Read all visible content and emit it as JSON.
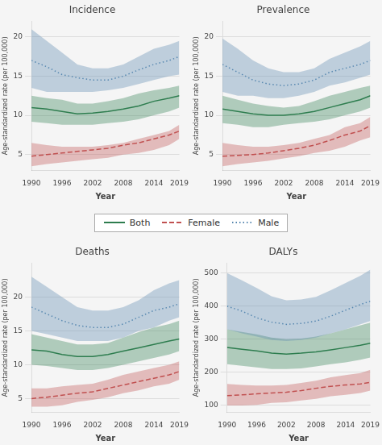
{
  "chart_data": [
    {
      "type": "line",
      "title": "Incidence",
      "xlabel": "Year",
      "ylabel": "Age-standardized rate (per 100,000)",
      "x": [
        1990,
        1993,
        1996,
        1999,
        2002,
        2005,
        2008,
        2011,
        2014,
        2017,
        2019
      ],
      "xlim": [
        1990,
        2019
      ],
      "xticks": [
        1990,
        1996,
        2002,
        2008,
        2014,
        2019
      ],
      "ylim": [
        3,
        22
      ],
      "yticks": [
        5,
        10,
        15,
        20
      ],
      "grid": "y",
      "legend": "bottom",
      "series": [
        {
          "name": "Both",
          "color": "#2e7d4f",
          "line_style": "solid",
          "values": [
            11.0,
            10.8,
            10.5,
            10.2,
            10.3,
            10.5,
            10.8,
            11.2,
            11.8,
            12.2,
            12.5
          ],
          "upper": [
            12.5,
            12.2,
            12.0,
            11.5,
            11.5,
            11.8,
            12.2,
            12.8,
            13.2,
            13.5,
            13.8
          ],
          "lower": [
            9.2,
            9.0,
            8.8,
            8.8,
            8.8,
            9.0,
            9.2,
            9.5,
            10.0,
            10.5,
            11.0
          ]
        },
        {
          "name": "Female",
          "color": "#c05050",
          "line_style": "dashed",
          "values": [
            4.8,
            5.0,
            5.2,
            5.4,
            5.6,
            5.8,
            6.2,
            6.5,
            7.0,
            7.5,
            8.0
          ],
          "upper": [
            6.5,
            6.2,
            6.0,
            6.0,
            6.0,
            6.2,
            6.5,
            7.0,
            7.5,
            8.0,
            8.8
          ],
          "lower": [
            3.5,
            3.8,
            4.0,
            4.2,
            4.4,
            4.6,
            5.0,
            5.2,
            5.6,
            6.2,
            7.0
          ]
        },
        {
          "name": "Male",
          "color": "#5888b0",
          "line_style": "dotted",
          "values": [
            17.0,
            16.2,
            15.2,
            14.8,
            14.5,
            14.5,
            15.0,
            15.8,
            16.5,
            17.0,
            17.5
          ],
          "upper": [
            21.0,
            19.5,
            18.0,
            16.5,
            16.0,
            16.0,
            16.5,
            17.5,
            18.5,
            19.0,
            19.5
          ],
          "lower": [
            13.5,
            13.0,
            13.0,
            13.0,
            13.0,
            13.2,
            13.5,
            14.0,
            14.5,
            15.0,
            15.2
          ]
        }
      ]
    },
    {
      "type": "line",
      "title": "Prevalence",
      "xlabel": "Year",
      "ylabel": "Age-standardized rate (per 100,000)",
      "x": [
        1990,
        1993,
        1996,
        1999,
        2002,
        2005,
        2008,
        2011,
        2014,
        2017,
        2019
      ],
      "xlim": [
        1990,
        2019
      ],
      "xticks": [
        1990,
        1996,
        2002,
        2008,
        2014,
        2019
      ],
      "ylim": [
        3,
        22
      ],
      "yticks": [
        5,
        10,
        15,
        20
      ],
      "grid": "y",
      "series": [
        {
          "name": "Both",
          "color": "#2e7d4f",
          "line_style": "solid",
          "values": [
            10.8,
            10.5,
            10.2,
            10.0,
            10.0,
            10.2,
            10.5,
            11.0,
            11.5,
            12.0,
            12.5
          ],
          "upper": [
            12.5,
            12.0,
            11.5,
            11.2,
            11.0,
            11.2,
            11.8,
            12.5,
            13.0,
            13.5,
            13.8
          ],
          "lower": [
            9.0,
            8.8,
            8.5,
            8.5,
            8.8,
            9.0,
            9.2,
            9.5,
            10.0,
            10.5,
            11.0
          ]
        },
        {
          "name": "Female",
          "color": "#c05050",
          "line_style": "dashed",
          "values": [
            4.8,
            4.9,
            5.0,
            5.2,
            5.5,
            5.8,
            6.2,
            6.8,
            7.5,
            8.0,
            8.7
          ],
          "upper": [
            6.5,
            6.2,
            6.0,
            6.0,
            6.2,
            6.5,
            7.0,
            7.5,
            8.5,
            9.0,
            9.8
          ],
          "lower": [
            3.5,
            3.8,
            4.0,
            4.2,
            4.5,
            4.8,
            5.2,
            5.5,
            6.0,
            6.8,
            7.2
          ]
        },
        {
          "name": "Male",
          "color": "#5888b0",
          "line_style": "dotted",
          "values": [
            16.5,
            15.5,
            14.5,
            14.0,
            13.8,
            14.0,
            14.5,
            15.5,
            16.0,
            16.5,
            17.0
          ],
          "upper": [
            19.8,
            18.5,
            17.0,
            16.0,
            15.5,
            15.5,
            16.0,
            17.2,
            18.0,
            18.8,
            19.5
          ],
          "lower": [
            13.0,
            12.5,
            12.5,
            12.2,
            12.2,
            12.5,
            13.0,
            13.8,
            14.2,
            14.8,
            15.2
          ]
        }
      ]
    },
    {
      "type": "line",
      "title": "Deaths",
      "xlabel": "Year",
      "ylabel": "Age-standardized rate (per 100,000)",
      "x": [
        1990,
        1993,
        1996,
        1999,
        2002,
        2005,
        2008,
        2011,
        2014,
        2017,
        2019
      ],
      "xlim": [
        1990,
        2019
      ],
      "xticks": [
        1990,
        1996,
        2002,
        2008,
        2014,
        2019
      ],
      "ylim": [
        3,
        25
      ],
      "yticks": [
        5,
        10,
        15,
        20
      ],
      "grid": "y",
      "series": [
        {
          "name": "Both",
          "color": "#2e7d4f",
          "line_style": "solid",
          "values": [
            12.2,
            12.0,
            11.5,
            11.2,
            11.2,
            11.5,
            12.0,
            12.5,
            13.0,
            13.5,
            13.8
          ],
          "upper": [
            14.5,
            14.0,
            13.5,
            13.0,
            13.0,
            13.2,
            14.0,
            14.8,
            15.5,
            16.0,
            16.5
          ],
          "lower": [
            10.0,
            9.8,
            9.5,
            9.2,
            9.2,
            9.5,
            10.0,
            10.5,
            11.0,
            11.5,
            12.0
          ]
        },
        {
          "name": "Female",
          "color": "#c05050",
          "line_style": "dashed",
          "values": [
            5.0,
            5.2,
            5.5,
            5.8,
            6.0,
            6.5,
            7.0,
            7.5,
            8.0,
            8.5,
            9.0
          ],
          "upper": [
            6.5,
            6.5,
            6.8,
            7.0,
            7.2,
            7.8,
            8.5,
            9.0,
            9.5,
            10.0,
            10.5
          ],
          "lower": [
            3.8,
            3.8,
            4.0,
            4.5,
            4.8,
            5.2,
            5.8,
            6.2,
            6.8,
            7.2,
            7.8
          ]
        },
        {
          "name": "Male",
          "color": "#5888b0",
          "line_style": "dotted",
          "values": [
            18.5,
            17.5,
            16.5,
            15.8,
            15.5,
            15.5,
            16.0,
            17.0,
            18.0,
            18.5,
            19.0
          ],
          "upper": [
            23.0,
            21.5,
            20.0,
            18.5,
            18.0,
            18.0,
            18.5,
            19.5,
            21.0,
            22.0,
            22.5
          ],
          "lower": [
            15.0,
            14.5,
            14.0,
            13.5,
            13.5,
            13.5,
            14.0,
            15.0,
            15.5,
            16.5,
            17.0
          ]
        }
      ]
    },
    {
      "type": "line",
      "title": "DALYs",
      "xlabel": "Year",
      "ylabel": "Age-standardized rate (per 100,000)",
      "x": [
        1990,
        1993,
        1996,
        1999,
        2002,
        2005,
        2008,
        2011,
        2014,
        2017,
        2019
      ],
      "xlim": [
        1990,
        2019
      ],
      "xticks": [
        1990,
        1996,
        2002,
        2008,
        2014,
        2019
      ],
      "ylim": [
        80,
        530
      ],
      "yticks": [
        100,
        200,
        300,
        400,
        500
      ],
      "grid": "y",
      "series": [
        {
          "name": "Both",
          "color": "#2e7d4f",
          "line_style": "solid",
          "values": [
            275,
            270,
            265,
            258,
            255,
            258,
            262,
            268,
            275,
            282,
            288
          ],
          "upper": [
            330,
            322,
            315,
            305,
            300,
            302,
            308,
            318,
            330,
            342,
            350
          ],
          "lower": [
            225,
            220,
            215,
            210,
            210,
            212,
            218,
            225,
            230,
            238,
            245
          ]
        },
        {
          "name": "Female",
          "color": "#c05050",
          "line_style": "dashed",
          "values": [
            130,
            132,
            135,
            138,
            140,
            145,
            152,
            158,
            162,
            165,
            170
          ],
          "upper": [
            165,
            162,
            160,
            160,
            162,
            168,
            175,
            185,
            192,
            198,
            208
          ],
          "lower": [
            100,
            100,
            102,
            108,
            110,
            115,
            120,
            128,
            132,
            138,
            145
          ]
        },
        {
          "name": "Male",
          "color": "#5888b0",
          "line_style": "dotted",
          "values": [
            400,
            385,
            365,
            352,
            345,
            348,
            355,
            370,
            388,
            405,
            415
          ],
          "upper": [
            500,
            478,
            455,
            430,
            418,
            420,
            428,
            448,
            470,
            492,
            510
          ],
          "lower": [
            330,
            318,
            308,
            298,
            295,
            298,
            305,
            318,
            330,
            345,
            355
          ]
        }
      ]
    }
  ]
}
